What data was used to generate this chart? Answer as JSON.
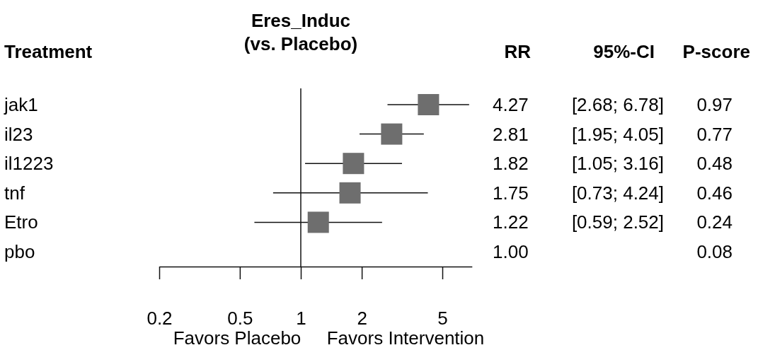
{
  "chart_data": {
    "type": "scatter",
    "orientation": "horizontal",
    "title": "Eres_Induc\n(vs. Placebo)",
    "ylabel": "Treatment",
    "categories": [
      "jak1",
      "il23",
      "il1223",
      "tnf",
      "Etro",
      "pbo"
    ],
    "values": [
      4.27,
      2.81,
      1.82,
      1.75,
      1.22,
      null
    ],
    "errors": [
      [
        2.68,
        6.78
      ],
      [
        1.95,
        4.05
      ],
      [
        1.05,
        3.16
      ],
      [
        0.73,
        4.24
      ],
      [
        0.59,
        2.52
      ],
      null
    ],
    "value_labels": [
      "4.27",
      "2.81",
      "1.82",
      "1.75",
      "1.22",
      "1.00"
    ],
    "color": "#6e6e6e",
    "marker": "square",
    "log": "x",
    "xlim": [
      0.2,
      7
    ],
    "xticks": [
      0.2,
      0.5,
      1,
      2,
      5
    ],
    "ref_lines": [
      {
        "axis": "x",
        "value": 1
      }
    ],
    "annotations": [
      "RR",
      "95%-CI",
      "P-score",
      "[2.68; 6.78]",
      "[1.95; 4.05]",
      "[1.05; 3.16]",
      "[0.73; 4.24]",
      "[0.59; 2.52]",
      "0.97",
      "0.77",
      "0.48",
      "0.46",
      "0.24",
      "0.08",
      "Favors Placebo",
      "Favors Intervention"
    ]
  }
}
